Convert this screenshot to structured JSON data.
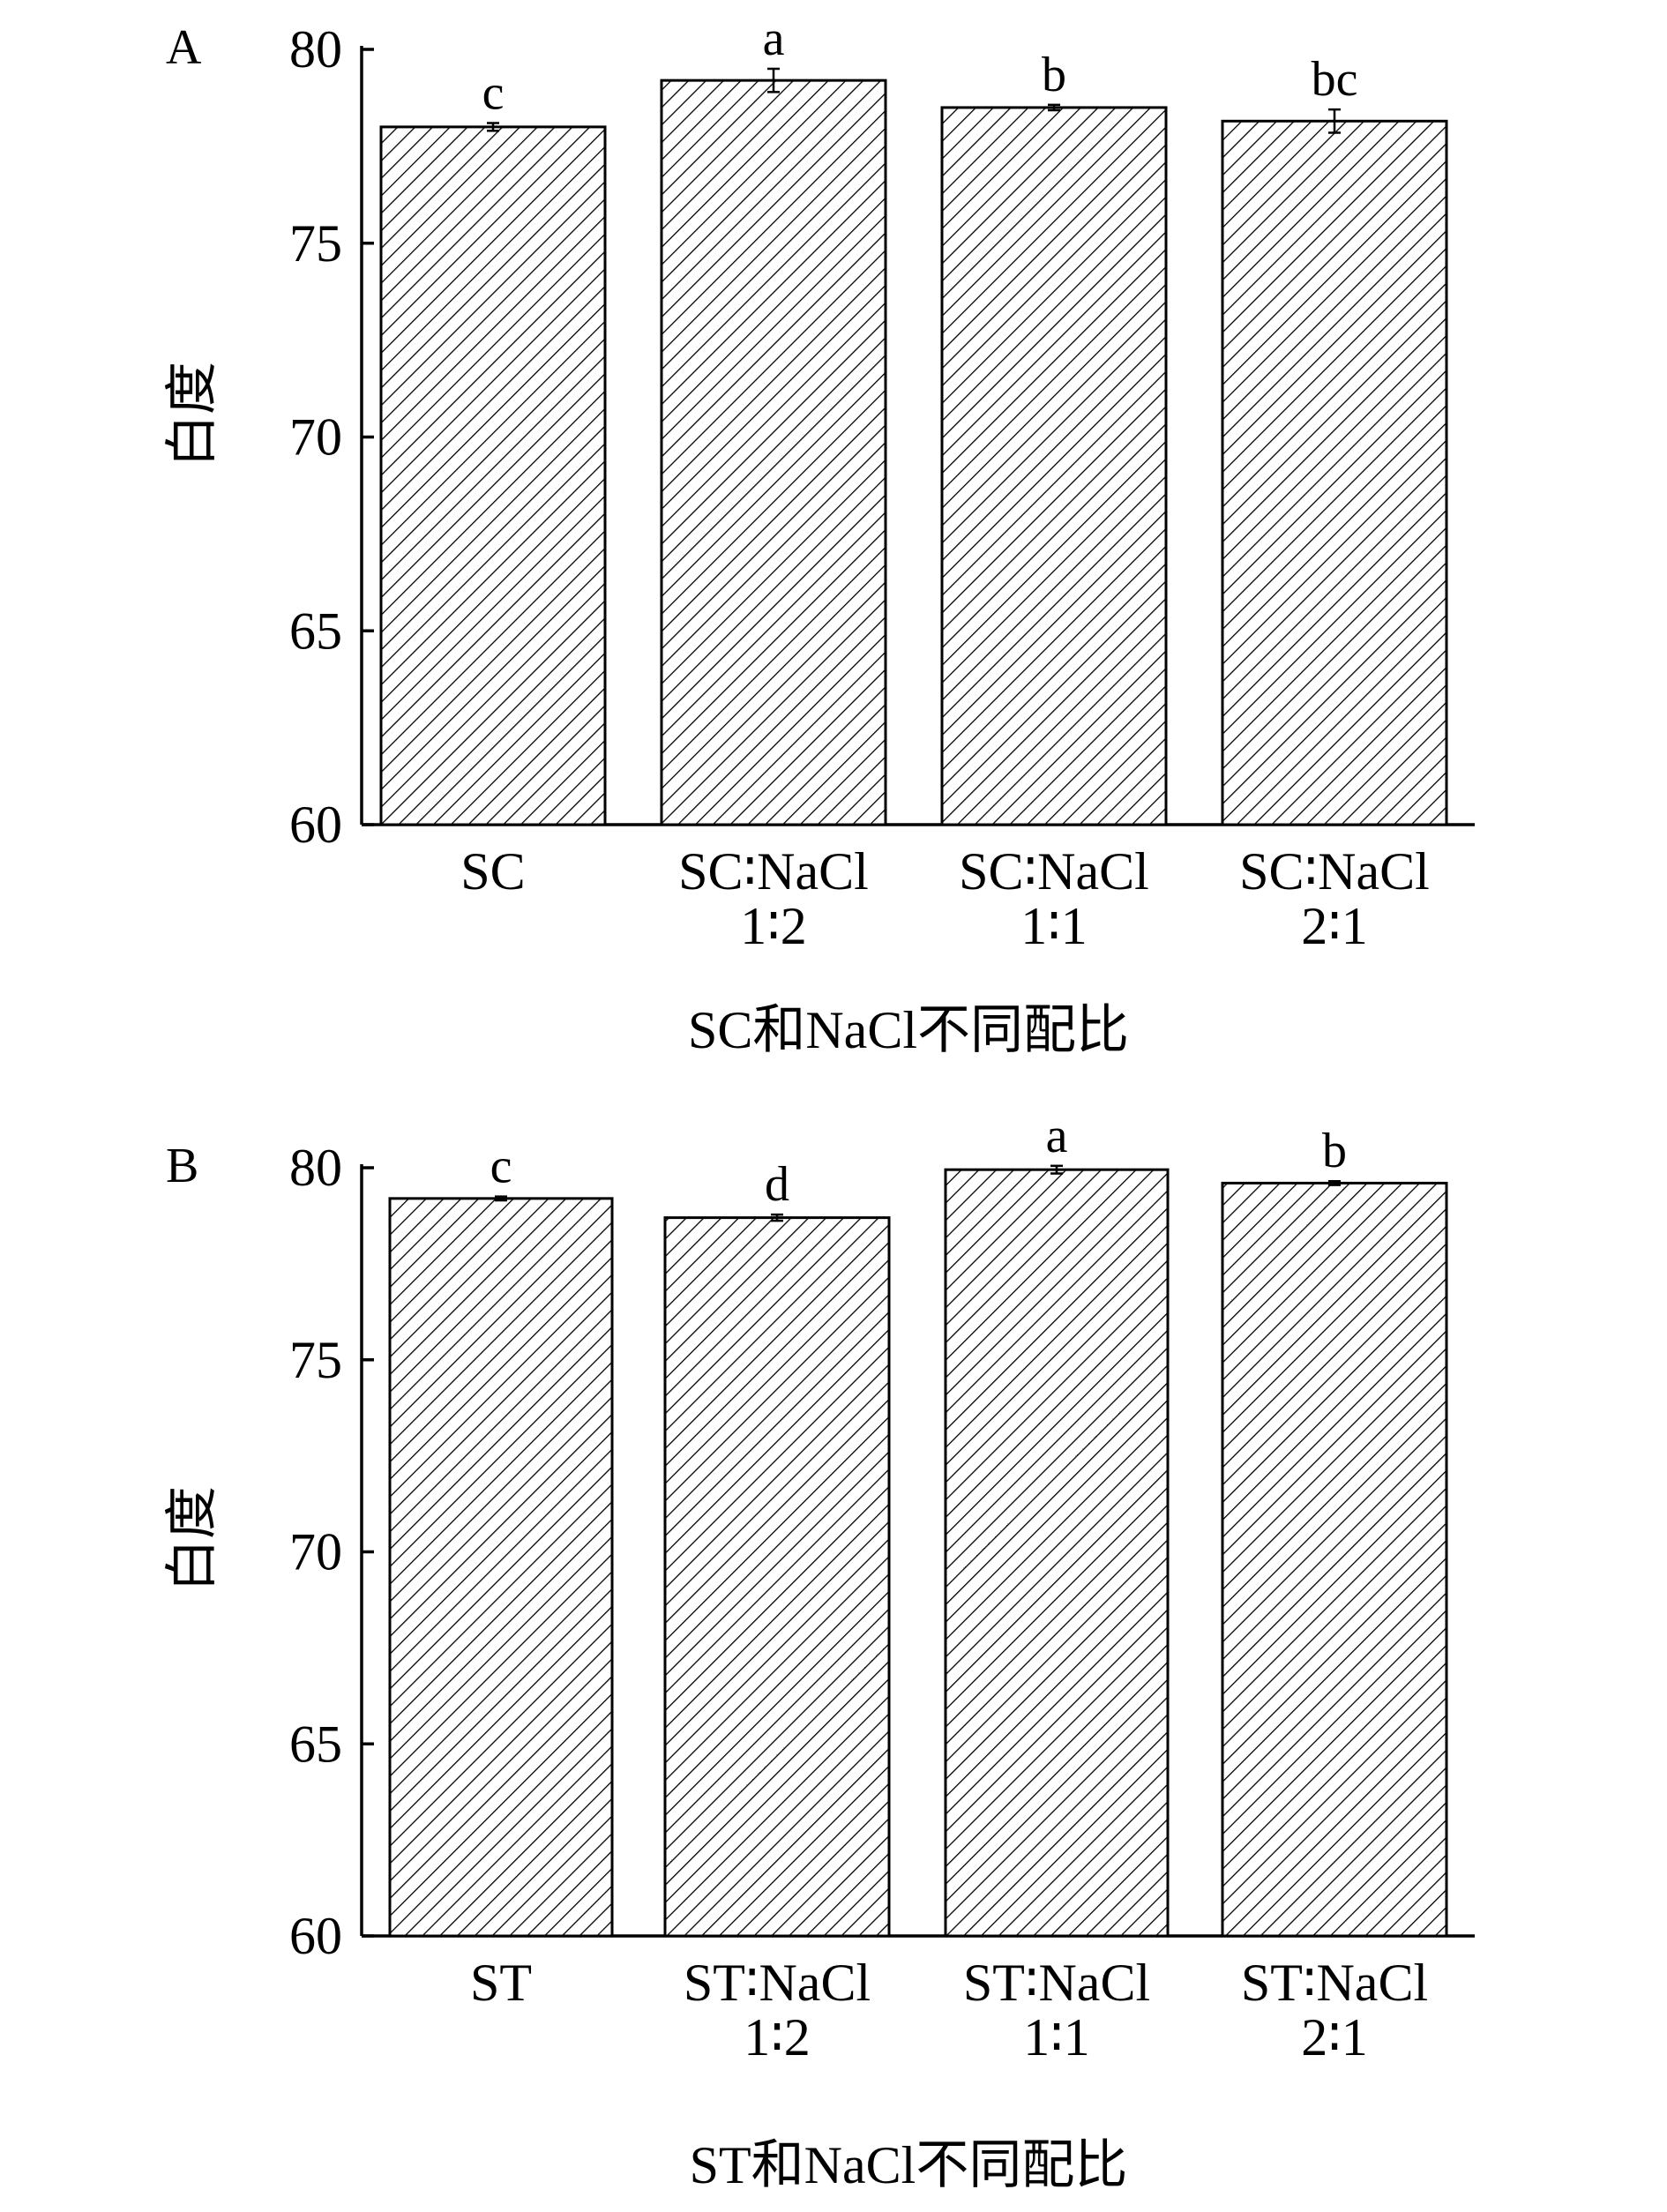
{
  "chart_data": [
    {
      "panel_label": "A",
      "type": "bar",
      "categories": [
        [
          "SC"
        ],
        [
          "SC∶NaCl",
          "1∶2"
        ],
        [
          "SC∶NaCl",
          "1∶1"
        ],
        [
          "SC∶NaCl",
          "2∶1"
        ]
      ],
      "values": [
        78.0,
        79.2,
        78.5,
        78.15
      ],
      "errors": [
        0.1,
        0.3,
        0.07,
        0.3
      ],
      "significance": [
        "c",
        "a",
        "b",
        "bc"
      ],
      "xlabel": "SC和NaCl不同配比",
      "ylabel": "白度",
      "ylim": [
        60,
        80
      ],
      "yticks": [
        60,
        65,
        70,
        75,
        80
      ],
      "pattern": "diagonal-hatch"
    },
    {
      "panel_label": "B",
      "type": "bar",
      "categories": [
        [
          "ST"
        ],
        [
          "ST∶NaCl",
          "1∶2"
        ],
        [
          "ST∶NaCl",
          "1∶1"
        ],
        [
          "ST∶NaCl",
          "2∶1"
        ]
      ],
      "values": [
        79.2,
        78.7,
        79.95,
        79.6
      ],
      "errors": [
        0.05,
        0.08,
        0.1,
        0.05
      ],
      "significance": [
        "c",
        "d",
        "a",
        "b"
      ],
      "xlabel": "ST和NaCl不同配比",
      "ylabel": "白度",
      "ylim": [
        60,
        80
      ],
      "yticks": [
        60,
        65,
        70,
        75,
        80
      ],
      "pattern": "diagonal-hatch"
    }
  ]
}
